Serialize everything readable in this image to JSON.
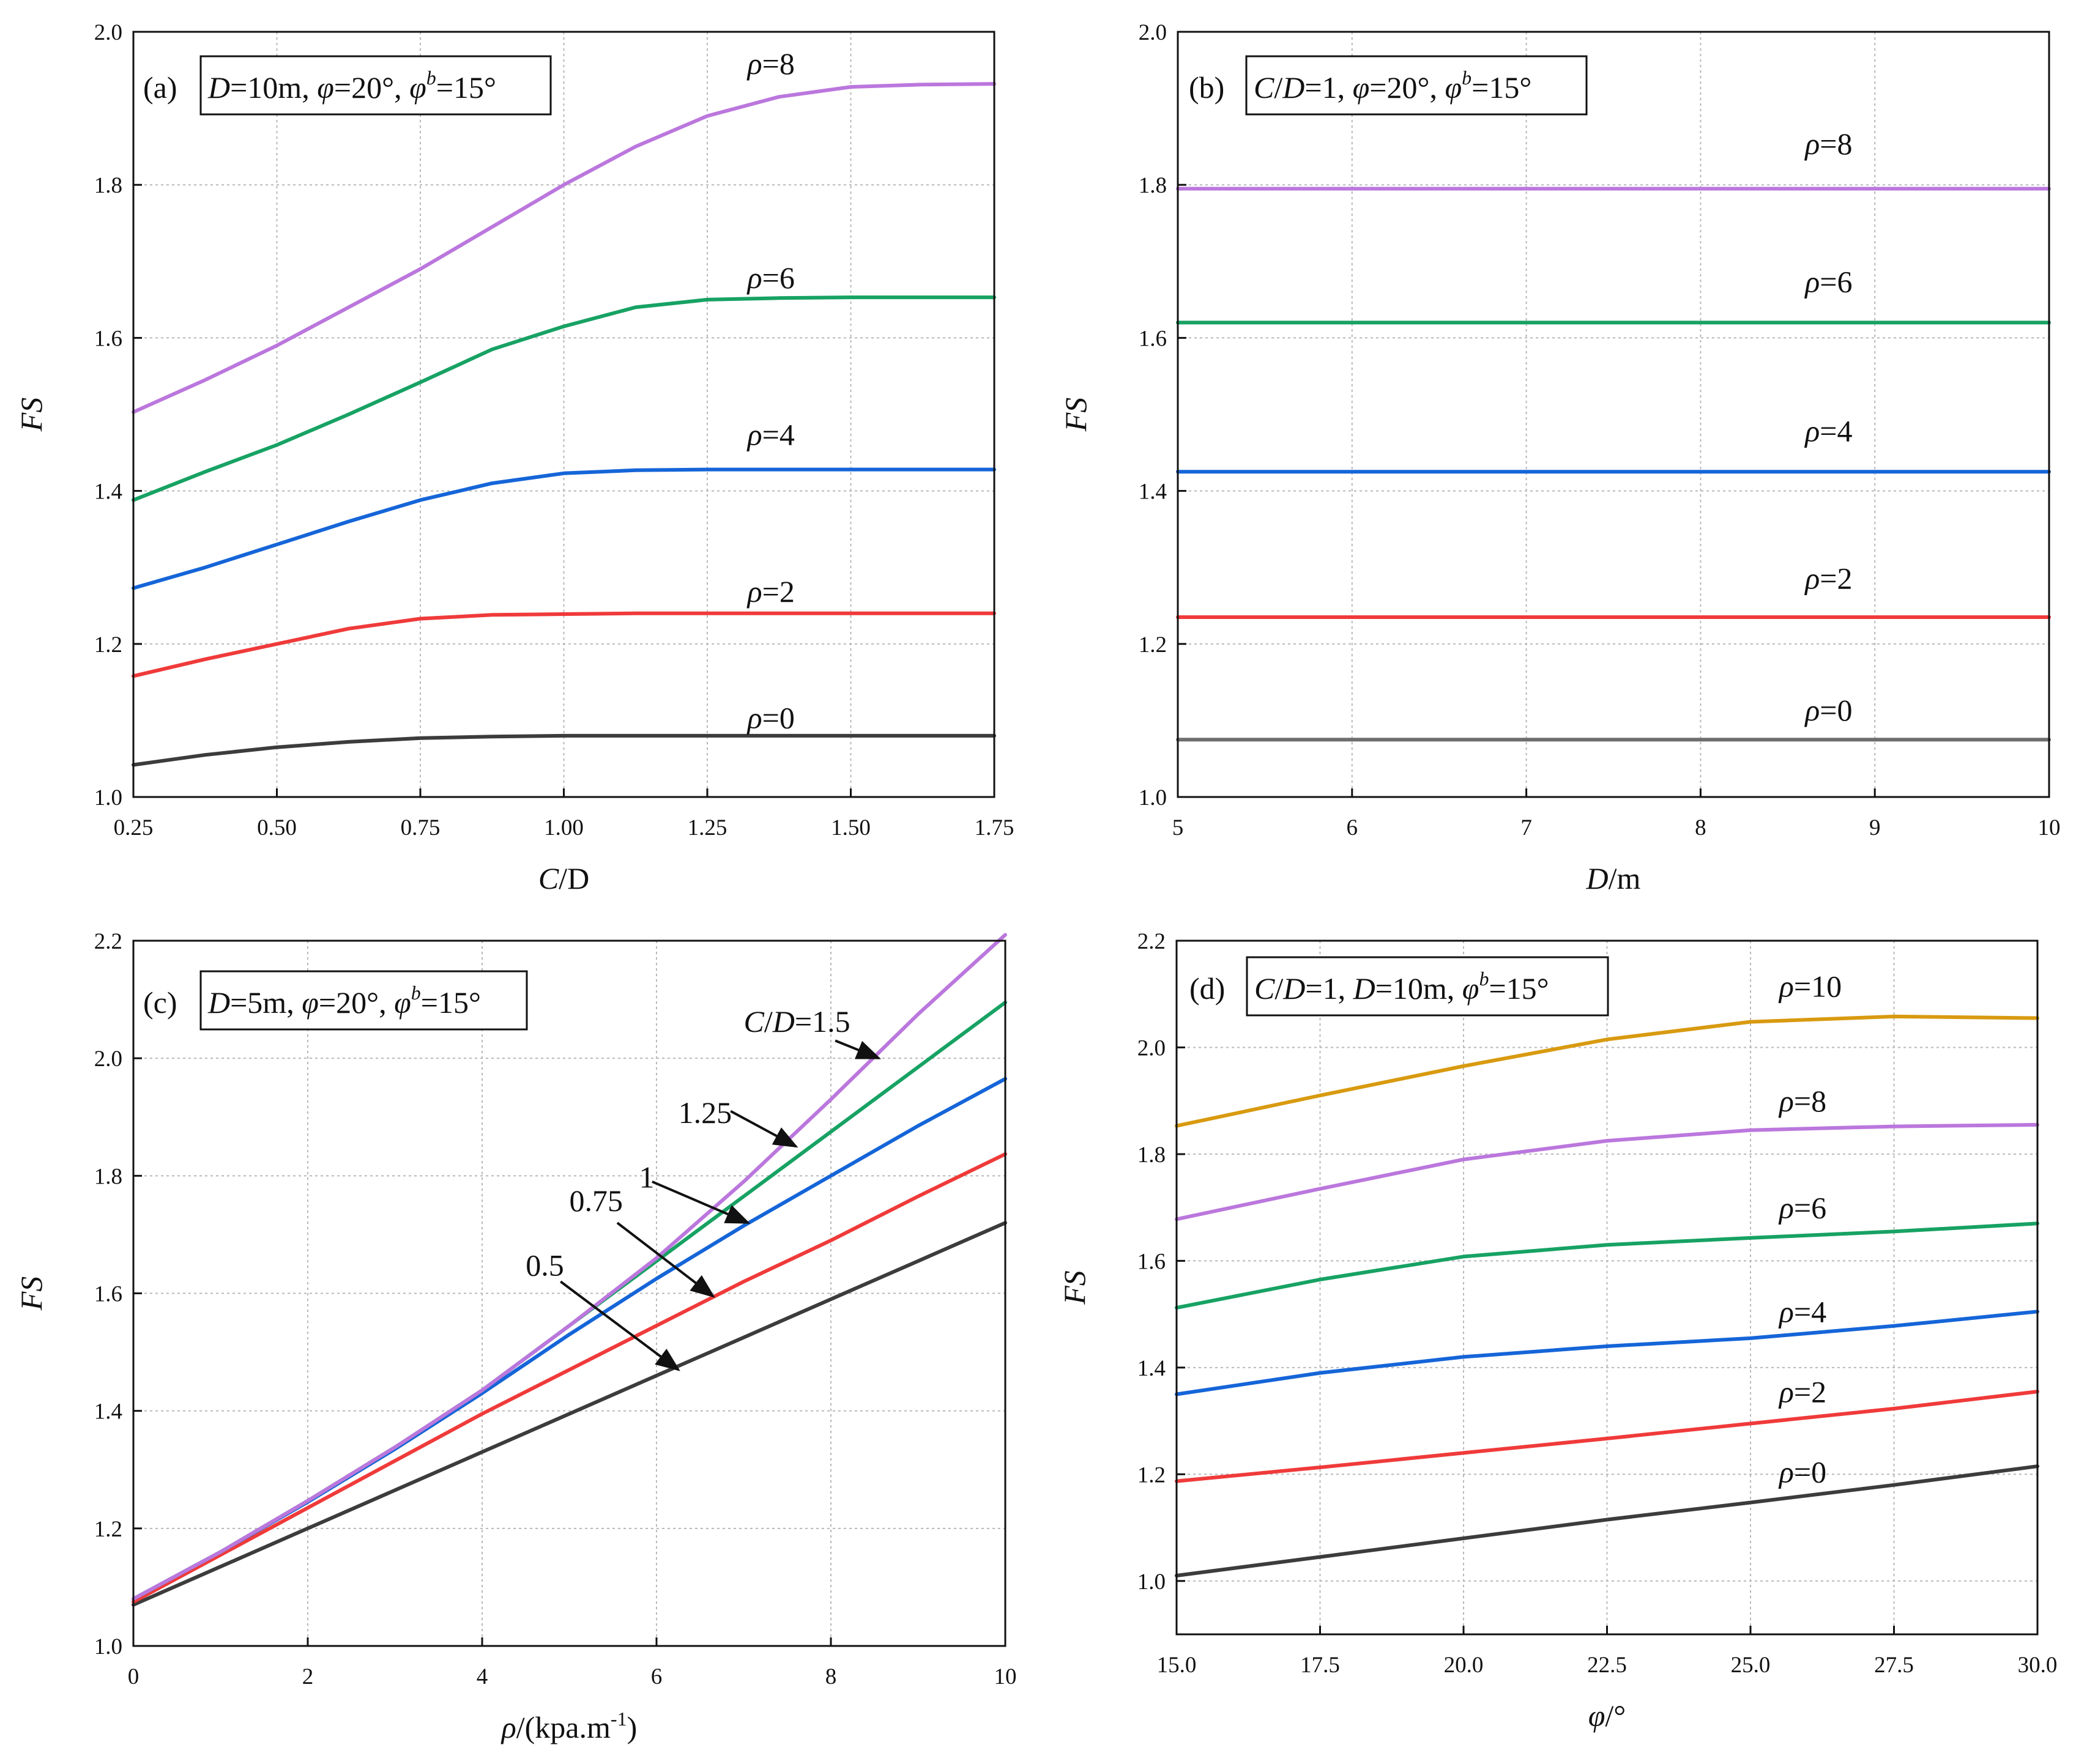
{
  "chart_data": [
    {
      "panel": "(a)",
      "type": "line",
      "annotation": "D=10m, φ=20°, φb=15°",
      "annotation_parts": {
        "tag": "(a)",
        "p1i": "D",
        "p1": "=10m, ",
        "p2i": "φ",
        "p2": "=20°, ",
        "p3i": "φ",
        "p3s": "b",
        "p3": "=15°"
      },
      "xlabel": "C/D",
      "xlabel_parts": {
        "a": "C",
        "b": "/",
        "c": "D"
      },
      "ylabel": "FS",
      "xlim": [
        0.25,
        1.75
      ],
      "ylim": [
        1.0,
        2.0
      ],
      "xticks": [
        0.25,
        0.5,
        0.75,
        1.0,
        1.25,
        1.5,
        1.75
      ],
      "xtick_labels": [
        "0.25",
        "0.50",
        "0.75",
        "1.00",
        "1.25",
        "1.50",
        "1.75"
      ],
      "yticks": [
        1.0,
        1.2,
        1.4,
        1.6,
        1.8,
        2.0
      ],
      "ytick_labels": [
        "1.0",
        "1.2",
        "1.4",
        "1.6",
        "1.8",
        "2.0"
      ],
      "x": [
        0.25,
        0.375,
        0.5,
        0.625,
        0.75,
        0.875,
        1.0,
        1.125,
        1.25,
        1.375,
        1.5,
        1.625,
        1.75
      ],
      "series": [
        {
          "name": "ρ=0",
          "color": "#3c3c3c",
          "values": [
            1.042,
            1.055,
            1.065,
            1.072,
            1.077,
            1.079,
            1.08,
            1.08,
            1.08,
            1.08,
            1.08,
            1.08,
            1.08
          ]
        },
        {
          "name": "ρ=2",
          "color": "#f03a3a",
          "values": [
            1.158,
            1.18,
            1.2,
            1.22,
            1.233,
            1.238,
            1.239,
            1.24,
            1.24,
            1.24,
            1.24,
            1.24,
            1.24
          ]
        },
        {
          "name": "ρ=4",
          "color": "#1565d8",
          "values": [
            1.273,
            1.3,
            1.33,
            1.36,
            1.388,
            1.41,
            1.423,
            1.427,
            1.428,
            1.428,
            1.428,
            1.428,
            1.428
          ]
        },
        {
          "name": "ρ=6",
          "color": "#17a263",
          "values": [
            1.388,
            1.425,
            1.46,
            1.5,
            1.542,
            1.585,
            1.615,
            1.64,
            1.65,
            1.652,
            1.653,
            1.653,
            1.653
          ]
        },
        {
          "name": "ρ=8",
          "color": "#bb77dd",
          "values": [
            1.503,
            1.545,
            1.59,
            1.64,
            1.69,
            1.745,
            1.8,
            1.85,
            1.89,
            1.915,
            1.928,
            1.931,
            1.932
          ]
        }
      ],
      "curve_labels": [
        {
          "pre": "ρ",
          "post": "=8",
          "x": 1.32,
          "y": 1.945
        },
        {
          "pre": "ρ",
          "post": "=6",
          "x": 1.32,
          "y": 1.665
        },
        {
          "pre": "ρ",
          "post": "=4",
          "x": 1.32,
          "y": 1.46
        },
        {
          "pre": "ρ",
          "post": "=2",
          "x": 1.32,
          "y": 1.255
        },
        {
          "pre": "ρ",
          "post": "=0",
          "x": 1.32,
          "y": 1.09
        }
      ]
    },
    {
      "panel": "(b)",
      "type": "line",
      "annotation": "C/D=1, φ=20°, φb=15°",
      "annotation_parts": {
        "tag": "(b)",
        "p1i": "C",
        "p1": "/",
        "p1bi": "D",
        "p1b": "=1, ",
        "p2i": "φ",
        "p2": "=20°, ",
        "p3i": "φ",
        "p3s": "b",
        "p3": "=15°"
      },
      "xlabel": "D/m",
      "xlabel_parts": {
        "a": "D",
        "b": "/m",
        "c": ""
      },
      "ylabel": "FS",
      "xlim": [
        5,
        10
      ],
      "ylim": [
        1.0,
        2.0
      ],
      "xticks": [
        5,
        6,
        7,
        8,
        9,
        10
      ],
      "xtick_labels": [
        "5",
        "6",
        "7",
        "8",
        "9",
        "10"
      ],
      "yticks": [
        1.0,
        1.2,
        1.4,
        1.6,
        1.8,
        2.0
      ],
      "ytick_labels": [
        "1.0",
        "1.2",
        "1.4",
        "1.6",
        "1.8",
        "2.0"
      ],
      "x": [
        5,
        10
      ],
      "series": [
        {
          "name": "ρ=0",
          "color": "#6e6e6e",
          "values": [
            1.075,
            1.075
          ]
        },
        {
          "name": "ρ=2",
          "color": "#f03a3a",
          "values": [
            1.235,
            1.235
          ]
        },
        {
          "name": "ρ=4",
          "color": "#1565d8",
          "values": [
            1.425,
            1.425
          ]
        },
        {
          "name": "ρ=6",
          "color": "#17a263",
          "values": [
            1.62,
            1.62
          ]
        },
        {
          "name": "ρ=8",
          "color": "#bb77dd",
          "values": [
            1.795,
            1.795
          ]
        }
      ],
      "curve_labels": [
        {
          "pre": "ρ",
          "post": "=8",
          "x": 8.6,
          "y": 1.84
        },
        {
          "pre": "ρ",
          "post": "=6",
          "x": 8.6,
          "y": 1.66
        },
        {
          "pre": "ρ",
          "post": "=4",
          "x": 8.6,
          "y": 1.465
        },
        {
          "pre": "ρ",
          "post": "=2",
          "x": 8.6,
          "y": 1.272
        },
        {
          "pre": "ρ",
          "post": "=0",
          "x": 8.6,
          "y": 1.1
        }
      ]
    },
    {
      "panel": "(c)",
      "type": "line",
      "annotation": "D=5m, φ=20°, φb=15°",
      "annotation_parts": {
        "tag": "(c)",
        "p1i": "D",
        "p1": "=5m, ",
        "p2i": "φ",
        "p2": "=20°, ",
        "p3i": "φ",
        "p3s": "b",
        "p3": "=15°"
      },
      "xlabel": "ρ/(kpa.m-1)",
      "xlabel_parts": {
        "a": "ρ",
        "b": "/(kpa.m",
        "sup": "-1",
        "c": ")"
      },
      "ylabel": "FS",
      "xlim": [
        0,
        10
      ],
      "ylim": [
        1.0,
        2.2
      ],
      "xticks": [
        0,
        2,
        4,
        6,
        8,
        10
      ],
      "xtick_labels": [
        "0",
        "2",
        "4",
        "6",
        "8",
        "10"
      ],
      "yticks": [
        1.0,
        1.2,
        1.4,
        1.6,
        1.8,
        2.0,
        2.2
      ],
      "ytick_labels": [
        "1.0",
        "1.2",
        "1.4",
        "1.6",
        "1.8",
        "2.0",
        "2.2"
      ],
      "x": [
        0,
        1,
        2,
        3,
        4,
        5,
        6,
        7,
        8,
        9,
        10
      ],
      "series": [
        {
          "name": "C/D=0.5",
          "color": "#3c3c3c",
          "values": [
            1.07,
            1.135,
            1.2,
            1.265,
            1.33,
            1.395,
            1.46,
            1.525,
            1.59,
            1.655,
            1.72
          ]
        },
        {
          "name": "C/D=0.75",
          "color": "#f03a3a",
          "values": [
            1.075,
            1.155,
            1.235,
            1.315,
            1.395,
            1.47,
            1.545,
            1.62,
            1.69,
            1.765,
            1.837
          ]
        },
        {
          "name": "C/D=1",
          "color": "#1565d8",
          "values": [
            1.08,
            1.16,
            1.245,
            1.335,
            1.43,
            1.53,
            1.625,
            1.715,
            1.8,
            1.885,
            1.965
          ]
        },
        {
          "name": "C/D=1.25",
          "color": "#17a263",
          "values": [
            1.08,
            1.16,
            1.247,
            1.338,
            1.435,
            1.545,
            1.655,
            1.765,
            1.875,
            1.985,
            2.095
          ]
        },
        {
          "name": "C/D=1.5",
          "color": "#bb77dd",
          "values": [
            1.08,
            1.16,
            1.247,
            1.338,
            1.435,
            1.545,
            1.66,
            1.79,
            1.93,
            2.075,
            2.21
          ]
        }
      ],
      "curve_labels": [
        {
          "pre": "C/D",
          "post": "=1.5",
          "x": 7.0,
          "y": 2.045
        },
        {
          "pre": "",
          "post": "1.25",
          "x": 6.25,
          "y": 1.89
        },
        {
          "pre": "",
          "post": "1",
          "x": 5.8,
          "y": 1.78
        },
        {
          "pre": "",
          "post": "0.75",
          "x": 5.0,
          "y": 1.74
        },
        {
          "pre": "",
          "post": "0.5",
          "x": 4.5,
          "y": 1.63
        }
      ],
      "arrows": [
        {
          "from": [
            8.05,
            2.03
          ],
          "to": [
            8.55,
            2.0
          ]
        },
        {
          "from": [
            6.85,
            1.91
          ],
          "to": [
            7.6,
            1.85
          ]
        },
        {
          "from": [
            5.95,
            1.79
          ],
          "to": [
            7.05,
            1.72
          ]
        },
        {
          "from": [
            5.55,
            1.72
          ],
          "to": [
            6.65,
            1.595
          ]
        },
        {
          "from": [
            4.9,
            1.62
          ],
          "to": [
            6.25,
            1.47
          ]
        }
      ]
    },
    {
      "panel": "(d)",
      "type": "line",
      "annotation": "C/D=1, D=10m, φb=15°",
      "annotation_parts": {
        "tag": "(d)",
        "p1i": "C",
        "p1": "/",
        "p1bi": "D",
        "p1b": "=1, ",
        "p2i": "D",
        "p2": "=10m, ",
        "p3i": "φ",
        "p3s": "b",
        "p3": "=15°"
      },
      "xlabel": "φ/°",
      "xlabel_parts": {
        "a": "φ",
        "b": "/°",
        "c": ""
      },
      "ylabel": "FS",
      "xlim": [
        15.0,
        30.0
      ],
      "ylim": [
        0.9,
        2.2
      ],
      "xticks": [
        15.0,
        17.5,
        20.0,
        22.5,
        25.0,
        27.5,
        30.0
      ],
      "xtick_labels": [
        "15.0",
        "17.5",
        "20.0",
        "22.5",
        "25.0",
        "27.5",
        "30.0"
      ],
      "yticks": [
        1.0,
        1.2,
        1.4,
        1.6,
        1.8,
        2.0,
        2.2
      ],
      "ytick_labels": [
        "1.0",
        "1.2",
        "1.4",
        "1.6",
        "1.8",
        "2.0",
        "2.2"
      ],
      "x": [
        15.0,
        17.5,
        20.0,
        22.5,
        25.0,
        27.5,
        30.0
      ],
      "series": [
        {
          "name": "ρ=0",
          "color": "#3c3c3c",
          "values": [
            1.01,
            1.045,
            1.08,
            1.115,
            1.147,
            1.18,
            1.215
          ]
        },
        {
          "name": "ρ=2",
          "color": "#f03a3a",
          "values": [
            1.187,
            1.213,
            1.24,
            1.267,
            1.295,
            1.323,
            1.355
          ]
        },
        {
          "name": "ρ=4",
          "color": "#1565d8",
          "values": [
            1.35,
            1.39,
            1.42,
            1.44,
            1.455,
            1.478,
            1.505
          ]
        },
        {
          "name": "ρ=6",
          "color": "#17a263",
          "values": [
            1.512,
            1.565,
            1.608,
            1.63,
            1.643,
            1.655,
            1.67
          ]
        },
        {
          "name": "ρ=8",
          "color": "#bb77dd",
          "values": [
            1.678,
            1.735,
            1.79,
            1.825,
            1.845,
            1.852,
            1.855
          ]
        },
        {
          "name": "ρ=10",
          "color": "#d89a10",
          "values": [
            1.853,
            1.91,
            1.965,
            2.015,
            2.048,
            2.058,
            2.055
          ]
        }
      ],
      "curve_labels": [
        {
          "pre": "ρ",
          "post": "=10",
          "x": 25.5,
          "y": 2.095
        },
        {
          "pre": "ρ",
          "post": "=8",
          "x": 25.5,
          "y": 1.88
        },
        {
          "pre": "ρ",
          "post": "=6",
          "x": 25.5,
          "y": 1.68
        },
        {
          "pre": "ρ",
          "post": "=4",
          "x": 25.5,
          "y": 1.485
        },
        {
          "pre": "ρ",
          "post": "=2",
          "x": 25.5,
          "y": 1.335
        },
        {
          "pre": "ρ",
          "post": "=0",
          "x": 25.5,
          "y": 1.185
        }
      ]
    }
  ]
}
